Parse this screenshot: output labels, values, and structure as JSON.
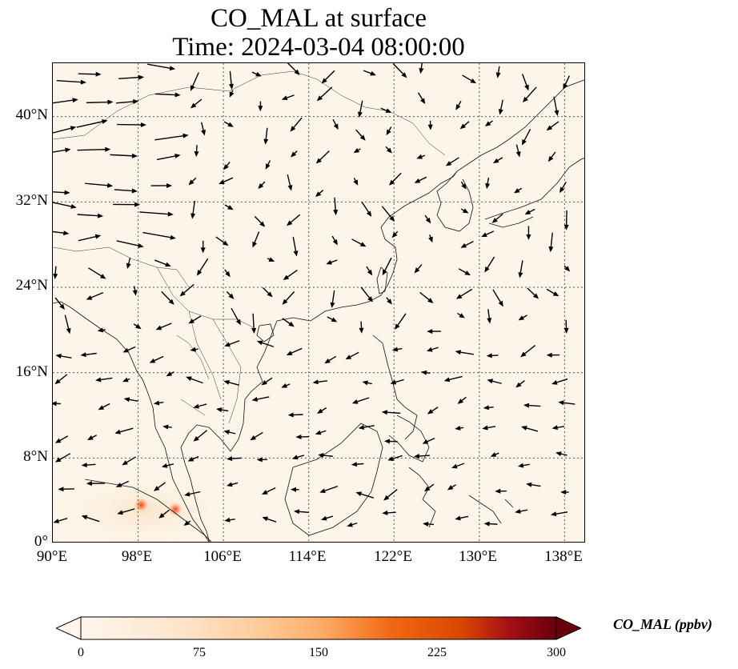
{
  "title_line1": "CO_MAL at surface",
  "title_line2": "Time: 2024-03-04 08:00:00",
  "map": {
    "lon_range": [
      90,
      140
    ],
    "lat_range": [
      0,
      45
    ],
    "lon_ticks": [
      {
        "value": 90,
        "label": "90°E"
      },
      {
        "value": 98,
        "label": "98°E"
      },
      {
        "value": 106,
        "label": "106°E"
      },
      {
        "value": 114,
        "label": "114°E"
      },
      {
        "value": 122,
        "label": "122°E"
      },
      {
        "value": 130,
        "label": "130°E"
      },
      {
        "value": 138,
        "label": "138°E"
      }
    ],
    "lat_ticks": [
      {
        "value": 0,
        "label": "0°"
      },
      {
        "value": 8,
        "label": "8°N"
      },
      {
        "value": 16,
        "label": "16°N"
      },
      {
        "value": 24,
        "label": "24°N"
      },
      {
        "value": 32,
        "label": "32°N"
      },
      {
        "value": 40,
        "label": "40°N"
      }
    ],
    "background_color": "#fdf5e9",
    "hotspots": [
      {
        "lon": 98.3,
        "lat": 3.6,
        "value": 140
      },
      {
        "lon": 101.5,
        "lat": 3.2,
        "value": 120
      }
    ]
  },
  "colorbar": {
    "label": "CO_MAL (ppbv)",
    "min": 0,
    "max": 300,
    "extend": "both",
    "ticks": [
      {
        "value": 0,
        "label": "0"
      },
      {
        "value": 75,
        "label": "75"
      },
      {
        "value": 150,
        "label": "150"
      },
      {
        "value": 225,
        "label": "225"
      },
      {
        "value": 300,
        "label": "300"
      }
    ],
    "colors": [
      "#fff5eb",
      "#fdd0a2",
      "#fdae6b",
      "#f16913",
      "#d94801",
      "#a50f15",
      "#67000d"
    ]
  }
}
